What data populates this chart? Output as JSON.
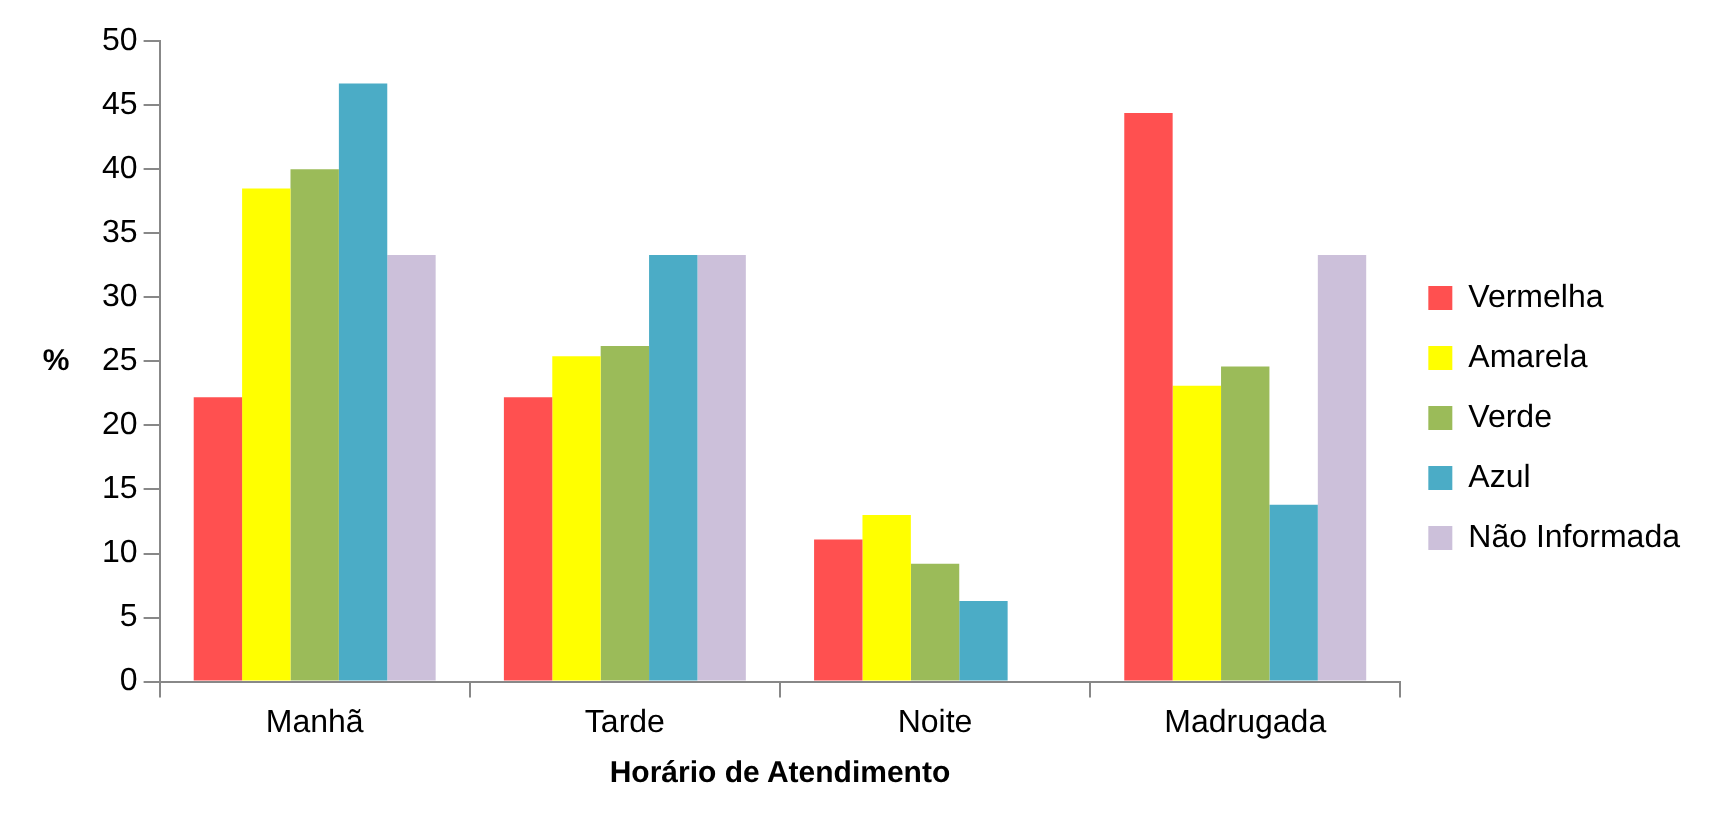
{
  "chart_data": {
    "type": "bar",
    "xlabel": "Horário de Atendimento",
    "ylabel": "%",
    "categories": [
      "Manhã",
      "Tarde",
      "Noite",
      "Madrugada"
    ],
    "series": [
      {
        "name": "Vermelha",
        "color": "#ff5050",
        "values": [
          22.2,
          22.2,
          11.1,
          44.4
        ]
      },
      {
        "name": "Amarela",
        "color": "#ffff00",
        "values": [
          38.5,
          25.4,
          13,
          23.1
        ]
      },
      {
        "name": "Verde",
        "color": "#9bbb59",
        "values": [
          40,
          26.2,
          9.2,
          24.6
        ]
      },
      {
        "name": "Azul",
        "color": "#4bacc6",
        "values": [
          46.7,
          33.3,
          6.3,
          13.8
        ]
      },
      {
        "name": "Não Informada",
        "color": "#ccc0da",
        "values": [
          33.3,
          33.3,
          0,
          33.3
        ]
      }
    ],
    "ylim": [
      0,
      50
    ],
    "yticks": [
      0,
      5,
      10,
      15,
      20,
      25,
      30,
      35,
      40,
      45,
      50
    ],
    "grid": false,
    "legend": "right"
  }
}
